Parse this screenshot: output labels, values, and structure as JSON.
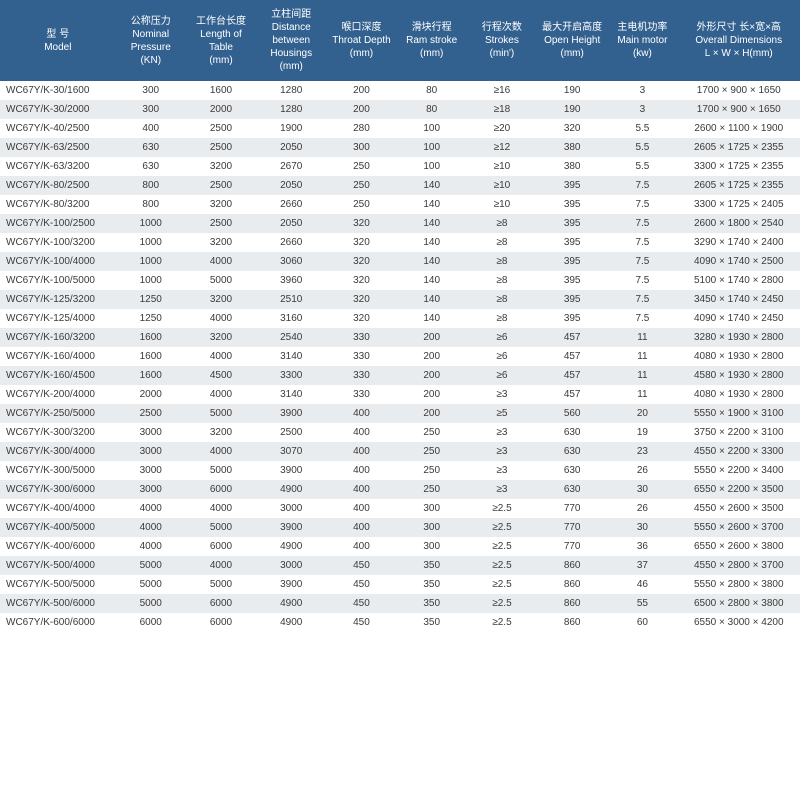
{
  "table": {
    "header_bg": "#33618f",
    "header_fg": "#ffffff",
    "row_alt_bg": "#e8ecef",
    "row_bg": "#ffffff",
    "text_color": "#3a3a3a",
    "font_size_header": 10,
    "font_size_body": 10,
    "columns": [
      {
        "cn": "型 号",
        "en": "Model",
        "unit": ""
      },
      {
        "cn": "公称压力",
        "en": "Nominal Pressure",
        "unit": "(KN)"
      },
      {
        "cn": "工作台长度",
        "en": "Length of Table",
        "unit": "(mm)"
      },
      {
        "cn": "立柱间距",
        "en": "Distance between Housings",
        "unit": "(mm)"
      },
      {
        "cn": "喉口深度",
        "en": "Throat Depth",
        "unit": "(mm)"
      },
      {
        "cn": "滑块行程",
        "en": "Ram stroke",
        "unit": "(mm)"
      },
      {
        "cn": "行程次数",
        "en": "Strokes",
        "unit": "(min')"
      },
      {
        "cn": "最大开启高度",
        "en": "Open Height",
        "unit": "(mm)"
      },
      {
        "cn": "主电机功率",
        "en": "Main motor",
        "unit": "(kw)"
      },
      {
        "cn": "外形尺寸 长×宽×高",
        "en": "Overall Dimensions",
        "unit": "L × W × H(mm)"
      }
    ],
    "rows": [
      [
        "WC67Y/K-30/1600",
        "300",
        "1600",
        "1280",
        "200",
        "80",
        "≥16",
        "190",
        "3",
        "1700 × 900 × 1650"
      ],
      [
        "WC67Y/K-30/2000",
        "300",
        "2000",
        "1280",
        "200",
        "80",
        "≥18",
        "190",
        "3",
        "1700 × 900 × 1650"
      ],
      [
        "WC67Y/K-40/2500",
        "400",
        "2500",
        "1900",
        "280",
        "100",
        "≥20",
        "320",
        "5.5",
        "2600 × 1100 × 1900"
      ],
      [
        "WC67Y/K-63/2500",
        "630",
        "2500",
        "2050",
        "300",
        "100",
        "≥12",
        "380",
        "5.5",
        "2605 × 1725 × 2355"
      ],
      [
        "WC67Y/K-63/3200",
        "630",
        "3200",
        "2670",
        "250",
        "100",
        "≥10",
        "380",
        "5.5",
        "3300 × 1725 × 2355"
      ],
      [
        "WC67Y/K-80/2500",
        "800",
        "2500",
        "2050",
        "250",
        "140",
        "≥10",
        "395",
        "7.5",
        "2605 × 1725 × 2355"
      ],
      [
        "WC67Y/K-80/3200",
        "800",
        "3200",
        "2660",
        "250",
        "140",
        "≥10",
        "395",
        "7.5",
        "3300 × 1725 × 2405"
      ],
      [
        "WC67Y/K-100/2500",
        "1000",
        "2500",
        "2050",
        "320",
        "140",
        "≥8",
        "395",
        "7.5",
        "2600 × 1800 × 2540"
      ],
      [
        "WC67Y/K-100/3200",
        "1000",
        "3200",
        "2660",
        "320",
        "140",
        "≥8",
        "395",
        "7.5",
        "3290 × 1740 × 2400"
      ],
      [
        "WC67Y/K-100/4000",
        "1000",
        "4000",
        "3060",
        "320",
        "140",
        "≥8",
        "395",
        "7.5",
        "4090 × 1740 × 2500"
      ],
      [
        "WC67Y/K-100/5000",
        "1000",
        "5000",
        "3960",
        "320",
        "140",
        "≥8",
        "395",
        "7.5",
        "5100 × 1740 × 2800"
      ],
      [
        "WC67Y/K-125/3200",
        "1250",
        "3200",
        "2510",
        "320",
        "140",
        "≥8",
        "395",
        "7.5",
        "3450 × 1740 × 2450"
      ],
      [
        "WC67Y/K-125/4000",
        "1250",
        "4000",
        "3160",
        "320",
        "140",
        "≥8",
        "395",
        "7.5",
        "4090 × 1740 × 2450"
      ],
      [
        "WC67Y/K-160/3200",
        "1600",
        "3200",
        "2540",
        "330",
        "200",
        "≥6",
        "457",
        "11",
        "3280 × 1930 × 2800"
      ],
      [
        "WC67Y/K-160/4000",
        "1600",
        "4000",
        "3140",
        "330",
        "200",
        "≥6",
        "457",
        "11",
        "4080 × 1930 × 2800"
      ],
      [
        "WC67Y/K-160/4500",
        "1600",
        "4500",
        "3300",
        "330",
        "200",
        "≥6",
        "457",
        "11",
        "4580 × 1930 × 2800"
      ],
      [
        "WC67Y/K-200/4000",
        "2000",
        "4000",
        "3140",
        "330",
        "200",
        "≥3",
        "457",
        "11",
        "4080 × 1930 × 2800"
      ],
      [
        "WC67Y/K-250/5000",
        "2500",
        "5000",
        "3900",
        "400",
        "200",
        "≥5",
        "560",
        "20",
        "5550 × 1900 × 3100"
      ],
      [
        "WC67Y/K-300/3200",
        "3000",
        "3200",
        "2500",
        "400",
        "250",
        "≥3",
        "630",
        "19",
        "3750 × 2200 × 3100"
      ],
      [
        "WC67Y/K-300/4000",
        "3000",
        "4000",
        "3070",
        "400",
        "250",
        "≥3",
        "630",
        "23",
        "4550 × 2200 × 3300"
      ],
      [
        "WC67Y/K-300/5000",
        "3000",
        "5000",
        "3900",
        "400",
        "250",
        "≥3",
        "630",
        "26",
        "5550 × 2200 × 3400"
      ],
      [
        "WC67Y/K-300/6000",
        "3000",
        "6000",
        "4900",
        "400",
        "250",
        "≥3",
        "630",
        "30",
        "6550 × 2200 × 3500"
      ],
      [
        "WC67Y/K-400/4000",
        "4000",
        "4000",
        "3000",
        "400",
        "300",
        "≥2.5",
        "770",
        "26",
        "4550 × 2600 × 3500"
      ],
      [
        "WC67Y/K-400/5000",
        "4000",
        "5000",
        "3900",
        "400",
        "300",
        "≥2.5",
        "770",
        "30",
        "5550 × 2600 × 3700"
      ],
      [
        "WC67Y/K-400/6000",
        "4000",
        "6000",
        "4900",
        "400",
        "300",
        "≥2.5",
        "770",
        "36",
        "6550 × 2600 × 3800"
      ],
      [
        "WC67Y/K-500/4000",
        "5000",
        "4000",
        "3000",
        "450",
        "350",
        "≥2.5",
        "860",
        "37",
        "4550 × 2800 × 3700"
      ],
      [
        "WC67Y/K-500/5000",
        "5000",
        "5000",
        "3900",
        "450",
        "350",
        "≥2.5",
        "860",
        "46",
        "5550 × 2800 × 3800"
      ],
      [
        "WC67Y/K-500/6000",
        "5000",
        "6000",
        "4900",
        "450",
        "350",
        "≥2.5",
        "860",
        "55",
        "6500 × 2800 × 3800"
      ],
      [
        "WC67Y/K-600/6000",
        "6000",
        "6000",
        "4900",
        "450",
        "350",
        "≥2.5",
        "860",
        "60",
        "6550 × 3000 × 4200"
      ]
    ]
  }
}
